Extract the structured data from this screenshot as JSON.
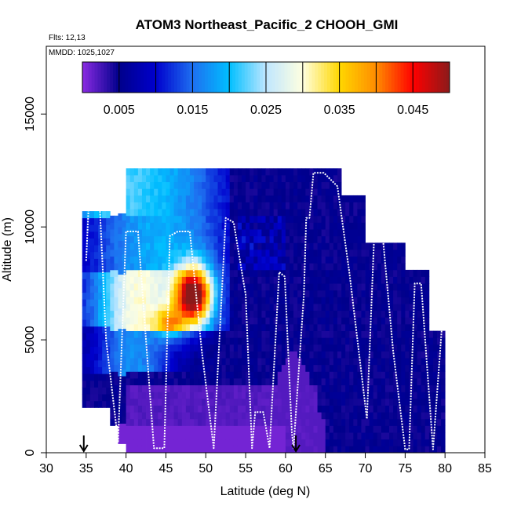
{
  "chart_data": {
    "type": "heatmap",
    "title": "ATOM3 Northeast_Pacific_2 CHOOH_GMI",
    "annotations": [
      "Flts: 12,13",
      "MMDD: 1025,1027"
    ],
    "xlabel": "Latitude (deg N)",
    "ylabel": "Altitude (m)",
    "xlim": [
      30,
      85
    ],
    "ylim": [
      0,
      18000
    ],
    "xticks": [
      "30",
      "35",
      "40",
      "45",
      "50",
      "55",
      "60",
      "65",
      "70",
      "75",
      "80",
      "85"
    ],
    "yticks": [
      "0",
      "5000",
      "10000",
      "15000"
    ],
    "colorbar": {
      "range": [
        0,
        0.05
      ],
      "ticks": [
        "0.005",
        "0.015",
        "0.025",
        "0.035",
        "0.045"
      ],
      "colors": [
        "#8a2be2",
        "#00008b",
        "#0000cd",
        "#1e6ff0",
        "#00bfff",
        "#bfe6ff",
        "#ffffe0",
        "#ffd700",
        "#ff8c00",
        "#ff0000",
        "#8b1a1a"
      ]
    },
    "arrows_at_latitude": [
      34.7,
      61.3
    ],
    "column_profiles": [
      {
        "lat_range": [
          34.5,
          40
        ],
        "top_alt": 10500
      },
      {
        "lat_range": [
          40,
          45
        ],
        "top_alt": 12400
      },
      {
        "lat_range": [
          45,
          52.5
        ],
        "top_alt": 12400
      },
      {
        "lat_range": [
          52.5,
          60
        ],
        "top_alt": 12400
      },
      {
        "lat_range": [
          60,
          67
        ],
        "top_alt": 12400
      },
      {
        "lat_range": [
          67,
          70
        ],
        "top_alt": 11300
      },
      {
        "lat_range": [
          70,
          75
        ],
        "top_alt": 9100
      },
      {
        "lat_range": [
          75,
          78
        ],
        "top_alt": 7900
      },
      {
        "lat_range": [
          78,
          80
        ],
        "top_alt": 5300
      }
    ],
    "features": [
      {
        "name": "high CHOOH plume",
        "lat": 48.5,
        "alt": 7000,
        "value": 0.044
      },
      {
        "name": "low CHOOH boundary layer",
        "lat_range": [
          40,
          64
        ],
        "alt_range": [
          0,
          3000
        ],
        "value": 0.001
      }
    ],
    "flight_track": [
      [
        35.0,
        8500
      ],
      [
        35.5,
        12400
      ],
      [
        36.5,
        12400
      ],
      [
        37.5,
        5000
      ],
      [
        39.0,
        500
      ],
      [
        40.0,
        9800
      ],
      [
        41.5,
        9800
      ],
      [
        43.5,
        200
      ],
      [
        44.8,
        200
      ],
      [
        45.5,
        9600
      ],
      [
        46.5,
        9800
      ],
      [
        48.0,
        9800
      ],
      [
        49.5,
        4500
      ],
      [
        51.0,
        200
      ],
      [
        52.5,
        10400
      ],
      [
        53.5,
        10200
      ],
      [
        55.0,
        7000
      ],
      [
        55.8,
        200
      ],
      [
        56.2,
        1800
      ],
      [
        57.2,
        1800
      ],
      [
        58.0,
        200
      ],
      [
        59.2,
        8000
      ],
      [
        59.9,
        7800
      ],
      [
        60.8,
        900
      ],
      [
        61.0,
        200
      ],
      [
        62.3,
        7000
      ],
      [
        62.6,
        10400
      ],
      [
        63.0,
        10400
      ],
      [
        63.5,
        12400
      ],
      [
        64.8,
        12400
      ],
      [
        66.5,
        11800
      ],
      [
        68.0,
        8000
      ],
      [
        70.2,
        1500
      ],
      [
        71.2,
        10300
      ],
      [
        72.0,
        10300
      ],
      [
        73.5,
        4500
      ],
      [
        75.0,
        150
      ],
      [
        75.5,
        150
      ],
      [
        76.2,
        7500
      ],
      [
        77.0,
        7500
      ],
      [
        78.5,
        150
      ],
      [
        80.0,
        7500
      ]
    ]
  }
}
